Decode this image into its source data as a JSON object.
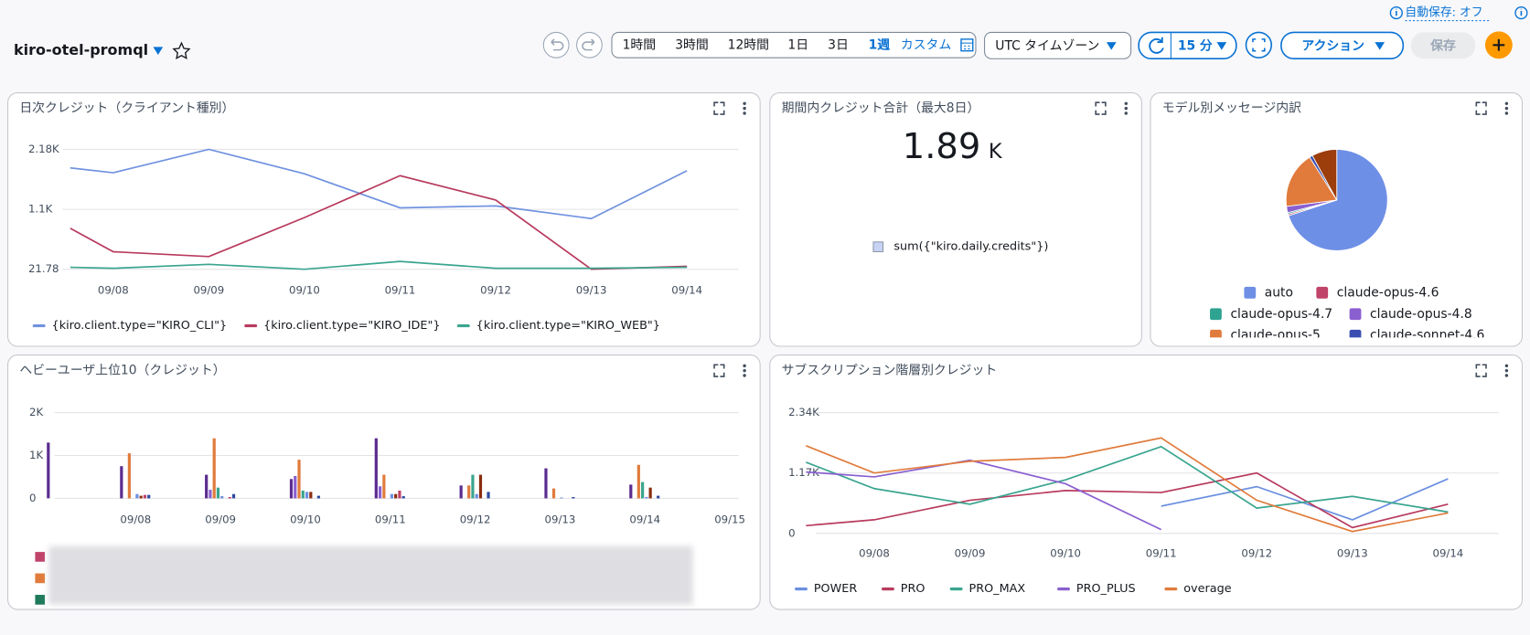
{
  "header": {
    "title": "kiro-otel-promql",
    "time_ranges": [
      "1時間",
      "3時間",
      "12時間",
      "1日",
      "3日",
      "1週",
      "カスタム"
    ],
    "timezone": "UTC タイムゾーン",
    "refresh": "15 分",
    "actions": "アクション",
    "save": "保存",
    "autosave": "自動保存: オフ"
  },
  "chart_data": [
    {
      "type": "line",
      "title": "日次クレジット（クライアント種別）",
      "categories": [
        null,
        "09/08",
        "09/09",
        "09/10",
        "09/11",
        "09/12",
        "09/13",
        "09/14"
      ],
      "ylim": [
        21.78,
        2180
      ],
      "yticks": [
        21.78,
        {
          "value": 1100,
          "label": "1.1K"
        },
        {
          "value": 2180,
          "label": "2.18K"
        }
      ],
      "grid": true,
      "series": [
        {
          "name": "{kiro.client.type=\"KIRO_CLI\"}",
          "color": "#7092e0",
          "values": [
            1846,
            1759,
            2180,
            1741,
            1127,
            1162,
            934,
            1794
          ]
        },
        {
          "name": "{kiro.client.type=\"KIRO_IDE\"}",
          "color": "#b83a5e",
          "values": [
            759,
            337,
            250,
            952,
            1706,
            1267,
            22,
            74
          ]
        },
        {
          "name": "{kiro.client.type=\"KIRO_WEB\"}",
          "color": "#3aa58f",
          "values": [
            57,
            39,
            110,
            22,
            162,
            39,
            39,
            57
          ]
        }
      ]
    },
    {
      "type": "stat",
      "title": "期間内クレジット合計（最大8日）",
      "value": 1.89,
      "unit": "K",
      "series": [
        {
          "name": "sum({\"kiro.daily.credits\"})",
          "color": "#c7d2f4"
        }
      ]
    },
    {
      "type": "pie",
      "title": "モデル別メッセージ内訳",
      "categories": [
        "auto",
        "claude-opus-4.6",
        "claude-opus-4.7",
        "claude-opus-4.8",
        "claude-opus-5",
        "claude-sonnet-4.6",
        null
      ],
      "values": [
        70,
        0.5,
        0.5,
        2,
        18,
        1,
        8
      ],
      "colors": [
        "#6e8fe6",
        "#c0436a",
        "#2fa391",
        "#8a5fd0",
        "#e07b3c",
        "#3b4fb0",
        "#9c3d0c"
      ]
    },
    {
      "type": "bar",
      "title": "ヘビーユーザ上位10（クレジット）",
      "categories": [
        null,
        "09/08",
        "09/09",
        "09/10",
        "09/11",
        "09/12",
        "09/13",
        "09/14",
        "09/15"
      ],
      "ylim": [
        0,
        2000
      ],
      "yticks": [
        0,
        {
          "value": 1000,
          "label": "1K"
        },
        {
          "value": 2000,
          "label": "2K"
        }
      ],
      "grid": true,
      "series": [
        {
          "color": "#5b2c8f",
          "values": [
            1300,
            750,
            550,
            450,
            1400,
            300,
            700,
            320,
            0
          ]
        },
        {
          "color": "#8a5fd0",
          "values": [
            0,
            0,
            200,
            520,
            280,
            0,
            0,
            0,
            0
          ]
        },
        {
          "color": "#e07b3c",
          "values": [
            0,
            1050,
            1400,
            900,
            550,
            300,
            230,
            780,
            0
          ]
        },
        {
          "color": "#3aa58f",
          "values": [
            0,
            0,
            250,
            180,
            0,
            550,
            0,
            380,
            0
          ]
        },
        {
          "color": "#6b8fe0",
          "values": [
            0,
            100,
            50,
            150,
            100,
            100,
            20,
            30,
            0
          ]
        },
        {
          "color": "#8b2d0f",
          "values": [
            0,
            60,
            0,
            150,
            100,
            550,
            0,
            250,
            0
          ]
        },
        {
          "color": "#c0436a",
          "values": [
            0,
            80,
            30,
            0,
            180,
            0,
            0,
            0,
            0
          ]
        },
        {
          "color": "#2e4aa0",
          "values": [
            0,
            80,
            100,
            60,
            50,
            150,
            30,
            60,
            0
          ]
        }
      ]
    },
    {
      "type": "line",
      "title": "サブスクリプション階層別クレジット",
      "categories": [
        null,
        "09/08",
        "09/09",
        "09/10",
        "09/11",
        "09/12",
        "09/13",
        "09/14"
      ],
      "ylim": [
        0,
        2340
      ],
      "yticks": [
        0,
        {
          "value": 1170,
          "label": "1.17K"
        },
        {
          "value": 2340,
          "label": "2.34K"
        }
      ],
      "grid": true,
      "series": [
        {
          "name": "POWER",
          "color": "#6b8fe0",
          "values": [
            null,
            null,
            null,
            null,
            528,
            906,
            264,
            1057
          ]
        },
        {
          "name": "PRO",
          "color": "#b83a5e",
          "values": [
            151,
            264,
            642,
            830,
            792,
            1170,
            113,
            566
          ]
        },
        {
          "name": "PRO_MAX",
          "color": "#3aa58f",
          "values": [
            1378,
            868,
            566,
            1038,
            1680,
            491,
            717,
            415
          ]
        },
        {
          "name": "PRO_PLUS",
          "color": "#8a5fd0",
          "values": [
            1189,
            1095,
            1416,
            962,
            75,
            null,
            null,
            null
          ]
        },
        {
          "name": "overage",
          "color": "#e07b3c",
          "values": [
            1698,
            1170,
            1397,
            1472,
            1849,
            642,
            38,
            396
          ]
        }
      ]
    }
  ]
}
